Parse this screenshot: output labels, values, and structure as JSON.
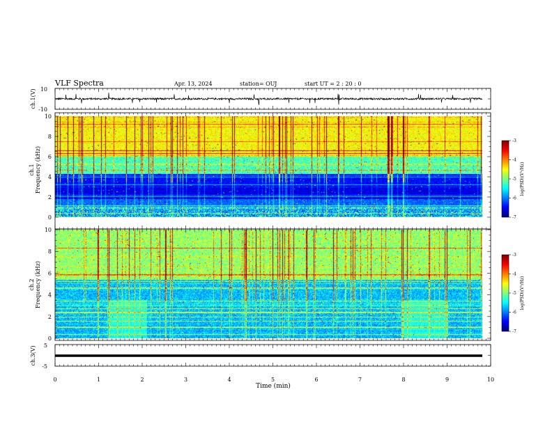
{
  "header": {
    "title": "VLF Spectra",
    "date": "Apr. 13, 2024",
    "station": "station= OUJ",
    "start": "start  UT  =   2  : 20 : 0"
  },
  "chart_data": [
    {
      "type": "line",
      "ylabel": "ch.1(V)",
      "ylim": [
        -10,
        10
      ],
      "ytick_labels": [
        "10",
        "-10"
      ],
      "description_values": {
        "baseline": 0,
        "typical_amplitude": 1.5,
        "spike_amplitude": 6
      }
    },
    {
      "type": "heatmap",
      "ylabel_line1": "ch.1",
      "ylabel_line2": "Frequency (kHz)",
      "ylim": [
        0,
        10
      ],
      "ytick_labels": [
        "0",
        "2",
        "4",
        "6",
        "8",
        "10"
      ],
      "colorbar": {
        "range": [
          -7,
          -3
        ],
        "ticks": [
          "-3",
          "-4",
          "-5",
          "-6",
          "-7"
        ],
        "label": "log(PSD)(V²/Hz)"
      }
    },
    {
      "type": "heatmap",
      "ylabel_line1": "ch.2",
      "ylabel_line2": "Frequency (kHz)",
      "ylim": [
        0,
        10
      ],
      "ytick_labels": [
        "0",
        "2",
        "4",
        "6",
        "8",
        "10"
      ],
      "colorbar": {
        "range": [
          -7,
          -3
        ],
        "ticks": [
          "-3",
          "-4",
          "-5",
          "-6",
          "-7"
        ],
        "label": "log(PSD)(V²/Hz)"
      }
    },
    {
      "type": "line",
      "ylabel": "ch.3(V)",
      "ylim": [
        -5,
        5
      ],
      "ytick_labels": [
        "5",
        "-5"
      ],
      "values": {
        "constant": -1.5
      }
    }
  ],
  "xaxis": {
    "label": "Time  (min)",
    "xlim": [
      0,
      10
    ],
    "tick_labels": [
      "0",
      "1",
      "2",
      "3",
      "4",
      "5",
      "6",
      "7",
      "8",
      "9",
      "10"
    ]
  },
  "colors": {
    "dark_blue": "#00007f",
    "blue": "#0000ff",
    "cyan": "#00ffff",
    "green": "#00ff00",
    "yellow": "#ffff00",
    "red": "#ff0000",
    "dark_red": "#7f0000"
  }
}
